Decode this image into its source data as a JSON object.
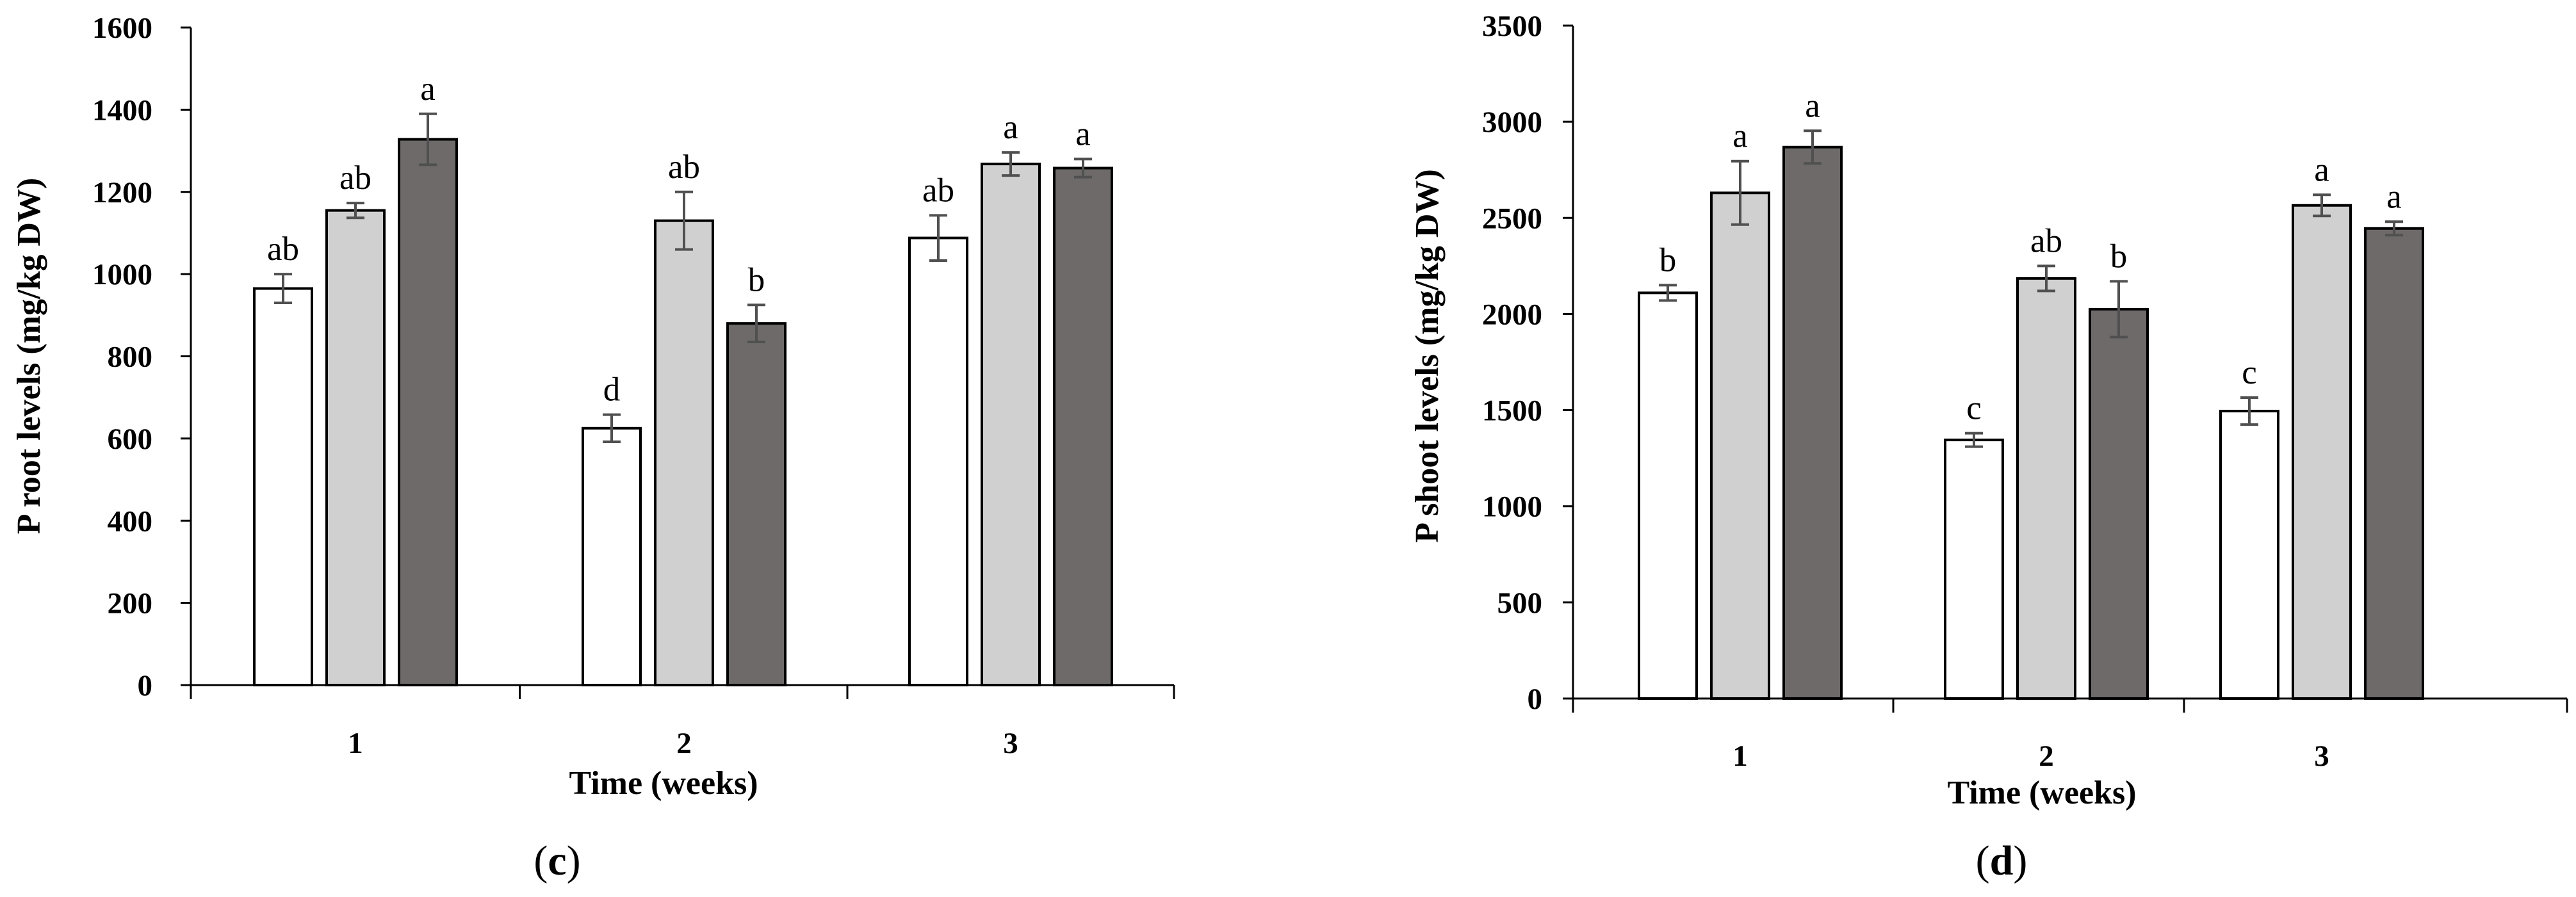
{
  "chart_data": [
    {
      "type": "bar",
      "panel_label": {
        "open": "(",
        "letter": "c",
        "close": ")"
      },
      "title": "",
      "xlabel": "Time (weeks)",
      "ylabel": "P root levels (mg/kg DW)",
      "categories": [
        "1",
        "2",
        "3"
      ],
      "ylim": [
        0,
        1600
      ],
      "ytick_step": 200,
      "grid": false,
      "legend": "none",
      "series": [
        {
          "color": "#ffffff",
          "values": [
            965,
            625,
            1088
          ],
          "errors": [
            35,
            33,
            55
          ],
          "letters": [
            "ab",
            "d",
            "ab"
          ]
        },
        {
          "color": "#d0d0d0",
          "values": [
            1155,
            1130,
            1268
          ],
          "errors": [
            18,
            70,
            28
          ],
          "letters": [
            "ab",
            "ab",
            "a"
          ]
        },
        {
          "color": "#6e6a6a",
          "values": [
            1328,
            880,
            1258
          ],
          "errors": [
            62,
            45,
            22
          ],
          "letters": [
            "a",
            "b",
            "a"
          ]
        }
      ]
    },
    {
      "type": "bar",
      "panel_label": {
        "open": "(",
        "letter": "d",
        "close": ")"
      },
      "title": "",
      "xlabel": "Time (weeks)",
      "ylabel": "P shoot levels (mg/kg DW)",
      "categories": [
        "1",
        "2",
        "3"
      ],
      "ylim": [
        0,
        3500
      ],
      "ytick_step": 500,
      "grid": false,
      "legend": "none",
      "series": [
        {
          "color": "#ffffff",
          "values": [
            2110,
            1345,
            1495
          ],
          "errors": [
            40,
            35,
            70
          ],
          "letters": [
            "b",
            "c",
            "c"
          ]
        },
        {
          "color": "#d0d0d0",
          "values": [
            2630,
            2185,
            2565
          ],
          "errors": [
            165,
            65,
            55
          ],
          "letters": [
            "a",
            "ab",
            "a"
          ]
        },
        {
          "color": "#6e6a6a",
          "values": [
            2868,
            2025,
            2445
          ],
          "errors": [
            85,
            145,
            35
          ],
          "letters": [
            "a",
            "b",
            "a"
          ]
        }
      ]
    }
  ]
}
